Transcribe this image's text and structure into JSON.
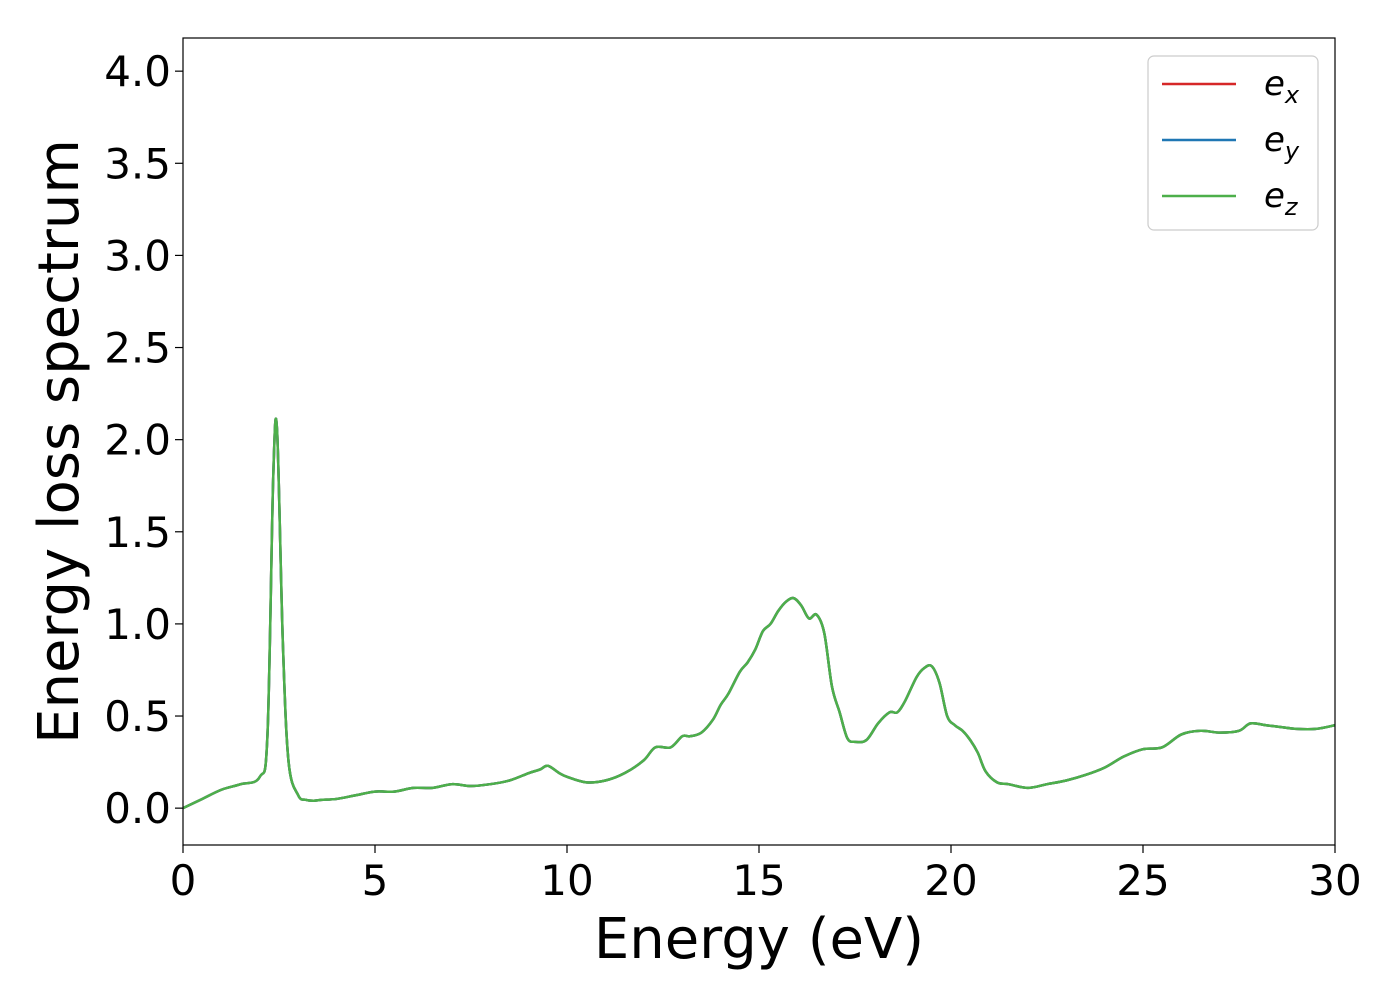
{
  "chart_data": {
    "type": "line",
    "xlabel": "Energy (eV)",
    "ylabel": "Energy loss spectrum",
    "xlim": [
      0,
      30
    ],
    "ylim": [
      -0.2,
      4.18
    ],
    "xticks": [
      0,
      5,
      10,
      15,
      20,
      25,
      30
    ],
    "xtick_labels": [
      "0",
      "5",
      "10",
      "15",
      "20",
      "25",
      "30"
    ],
    "yticks": [
      0.0,
      0.5,
      1.0,
      1.5,
      2.0,
      2.5,
      3.0,
      3.5,
      4.0
    ],
    "ytick_labels": [
      "0.0",
      "0.5",
      "1.0",
      "1.5",
      "2.0",
      "2.5",
      "3.0",
      "3.5",
      "4.0"
    ],
    "grid": false,
    "legend_position": "top-right",
    "series": [
      {
        "name_base": "e",
        "name_sub": "x",
        "color": "#d62728",
        "x": [
          0,
          0.5,
          1.0,
          1.5,
          2.0,
          2.2,
          2.35,
          2.45,
          2.6,
          2.75,
          3.0,
          3.2,
          3.4,
          3.6,
          4.0,
          4.5,
          5.0,
          5.5,
          6.0,
          6.5,
          7.0,
          7.5,
          8.0,
          8.5,
          9.0,
          9.3,
          9.5,
          9.8,
          10.0,
          10.5,
          11.0,
          11.5,
          12.0,
          12.3,
          12.7,
          13.0,
          13.2,
          13.5,
          13.8,
          14.0,
          14.2,
          14.5,
          14.7,
          14.9,
          15.1,
          15.3,
          15.5,
          15.7,
          15.9,
          16.1,
          16.3,
          16.5,
          16.7,
          16.9,
          17.1,
          17.3,
          17.5,
          17.8,
          18.1,
          18.4,
          18.6,
          18.8,
          19.1,
          19.3,
          19.5,
          19.7,
          19.9,
          20.1,
          20.3,
          20.5,
          20.7,
          20.9,
          21.2,
          21.5,
          22.0,
          22.5,
          23.0,
          23.5,
          24.0,
          24.5,
          25.0,
          25.5,
          26.0,
          26.5,
          27.0,
          27.5,
          27.8,
          28.2,
          28.6,
          29.0,
          29.5,
          30.0
        ],
        "y": [
          0.0,
          0.05,
          0.1,
          0.13,
          0.17,
          0.4,
          1.8,
          2.05,
          0.9,
          0.25,
          0.07,
          0.045,
          0.04,
          0.045,
          0.05,
          0.07,
          0.09,
          0.09,
          0.11,
          0.11,
          0.13,
          0.12,
          0.13,
          0.15,
          0.19,
          0.21,
          0.23,
          0.19,
          0.17,
          0.14,
          0.15,
          0.19,
          0.26,
          0.33,
          0.33,
          0.39,
          0.39,
          0.41,
          0.48,
          0.56,
          0.62,
          0.74,
          0.79,
          0.86,
          0.96,
          1.0,
          1.07,
          1.12,
          1.14,
          1.1,
          1.03,
          1.05,
          0.95,
          0.66,
          0.52,
          0.38,
          0.36,
          0.37,
          0.46,
          0.52,
          0.52,
          0.58,
          0.71,
          0.76,
          0.77,
          0.68,
          0.5,
          0.45,
          0.42,
          0.37,
          0.3,
          0.2,
          0.14,
          0.13,
          0.11,
          0.13,
          0.15,
          0.18,
          0.22,
          0.28,
          0.32,
          0.33,
          0.4,
          0.42,
          0.41,
          0.42,
          0.46,
          0.45,
          0.44,
          0.43,
          0.43,
          0.45
        ]
      },
      {
        "name_base": "e",
        "name_sub": "y",
        "color": "#1f77b4",
        "x": [
          0,
          0.5,
          1.0,
          1.5,
          2.0,
          2.2,
          2.35,
          2.45,
          2.6,
          2.75,
          3.0,
          3.2,
          3.4,
          3.6,
          4.0,
          4.5,
          5.0,
          5.5,
          6.0,
          6.5,
          7.0,
          7.5,
          8.0,
          8.5,
          9.0,
          9.3,
          9.5,
          9.8,
          10.0,
          10.5,
          11.0,
          11.5,
          12.0,
          12.3,
          12.7,
          13.0,
          13.2,
          13.5,
          13.8,
          14.0,
          14.2,
          14.5,
          14.7,
          14.9,
          15.1,
          15.3,
          15.5,
          15.7,
          15.9,
          16.1,
          16.3,
          16.5,
          16.7,
          16.9,
          17.1,
          17.3,
          17.5,
          17.8,
          18.1,
          18.4,
          18.6,
          18.8,
          19.1,
          19.3,
          19.5,
          19.7,
          19.9,
          20.1,
          20.3,
          20.5,
          20.7,
          20.9,
          21.2,
          21.5,
          22.0,
          22.5,
          23.0,
          23.5,
          24.0,
          24.5,
          25.0,
          25.5,
          26.0,
          26.5,
          27.0,
          27.5,
          27.8,
          28.2,
          28.6,
          29.0,
          29.5,
          30.0
        ],
        "y": [
          0.0,
          0.05,
          0.1,
          0.13,
          0.17,
          0.4,
          1.8,
          2.05,
          0.9,
          0.25,
          0.07,
          0.045,
          0.04,
          0.045,
          0.05,
          0.07,
          0.09,
          0.09,
          0.11,
          0.11,
          0.13,
          0.12,
          0.13,
          0.15,
          0.19,
          0.21,
          0.23,
          0.19,
          0.17,
          0.14,
          0.15,
          0.19,
          0.26,
          0.33,
          0.33,
          0.39,
          0.39,
          0.41,
          0.48,
          0.56,
          0.62,
          0.74,
          0.79,
          0.86,
          0.96,
          1.0,
          1.07,
          1.12,
          1.14,
          1.1,
          1.03,
          1.05,
          0.95,
          0.66,
          0.52,
          0.38,
          0.36,
          0.37,
          0.46,
          0.52,
          0.52,
          0.58,
          0.71,
          0.76,
          0.77,
          0.68,
          0.5,
          0.45,
          0.42,
          0.37,
          0.3,
          0.2,
          0.14,
          0.13,
          0.11,
          0.13,
          0.15,
          0.18,
          0.22,
          0.28,
          0.32,
          0.33,
          0.4,
          0.42,
          0.41,
          0.42,
          0.46,
          0.45,
          0.44,
          0.43,
          0.43,
          0.45
        ]
      },
      {
        "name_base": "e",
        "name_sub": "z",
        "color": "#4daf4a",
        "x": [
          0,
          0.5,
          1.0,
          1.5,
          2.0,
          2.2,
          2.35,
          2.45,
          2.6,
          2.75,
          3.0,
          3.2,
          3.4,
          3.6,
          4.0,
          4.5,
          5.0,
          5.5,
          6.0,
          6.5,
          7.0,
          7.5,
          8.0,
          8.5,
          9.0,
          9.3,
          9.5,
          9.8,
          10.0,
          10.5,
          11.0,
          11.5,
          12.0,
          12.3,
          12.7,
          13.0,
          13.2,
          13.5,
          13.8,
          14.0,
          14.2,
          14.5,
          14.7,
          14.9,
          15.1,
          15.3,
          15.5,
          15.7,
          15.9,
          16.1,
          16.3,
          16.5,
          16.7,
          16.9,
          17.1,
          17.3,
          17.5,
          17.8,
          18.1,
          18.4,
          18.6,
          18.8,
          19.1,
          19.3,
          19.5,
          19.7,
          19.9,
          20.1,
          20.3,
          20.5,
          20.7,
          20.9,
          21.2,
          21.5,
          22.0,
          22.5,
          23.0,
          23.5,
          24.0,
          24.5,
          25.0,
          25.5,
          26.0,
          26.5,
          27.0,
          27.5,
          27.8,
          28.2,
          28.6,
          29.0,
          29.5,
          30.0
        ],
        "y": [
          0.0,
          0.05,
          0.1,
          0.13,
          0.17,
          0.4,
          1.8,
          2.05,
          0.9,
          0.25,
          0.07,
          0.045,
          0.04,
          0.045,
          0.05,
          0.07,
          0.09,
          0.09,
          0.11,
          0.11,
          0.13,
          0.12,
          0.13,
          0.15,
          0.19,
          0.21,
          0.23,
          0.19,
          0.17,
          0.14,
          0.15,
          0.19,
          0.26,
          0.33,
          0.33,
          0.39,
          0.39,
          0.41,
          0.48,
          0.56,
          0.62,
          0.74,
          0.79,
          0.86,
          0.96,
          1.0,
          1.07,
          1.12,
          1.14,
          1.1,
          1.03,
          1.05,
          0.95,
          0.66,
          0.52,
          0.38,
          0.36,
          0.37,
          0.46,
          0.52,
          0.52,
          0.58,
          0.71,
          0.76,
          0.77,
          0.68,
          0.5,
          0.45,
          0.42,
          0.37,
          0.3,
          0.2,
          0.14,
          0.13,
          0.11,
          0.13,
          0.15,
          0.18,
          0.22,
          0.28,
          0.32,
          0.33,
          0.4,
          0.42,
          0.41,
          0.42,
          0.46,
          0.45,
          0.44,
          0.43,
          0.43,
          0.45
        ]
      }
    ]
  }
}
